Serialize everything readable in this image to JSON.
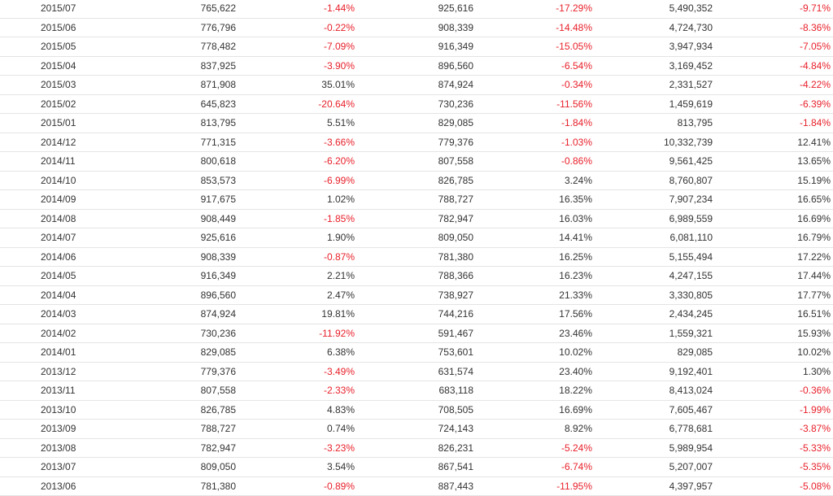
{
  "colors": {
    "text": "#333333",
    "negative": "#e8202a",
    "divider": "#e4e4e4"
  },
  "rows": [
    {
      "period": "2015/07",
      "v1": "765,622",
      "p1": "-1.44%",
      "v2": "925,616",
      "p2": "-17.29%",
      "v3": "5,490,352",
      "p3": "-9.71%"
    },
    {
      "period": "2015/06",
      "v1": "776,796",
      "p1": "-0.22%",
      "v2": "908,339",
      "p2": "-14.48%",
      "v3": "4,724,730",
      "p3": "-8.36%"
    },
    {
      "period": "2015/05",
      "v1": "778,482",
      "p1": "-7.09%",
      "v2": "916,349",
      "p2": "-15.05%",
      "v3": "3,947,934",
      "p3": "-7.05%"
    },
    {
      "period": "2015/04",
      "v1": "837,925",
      "p1": "-3.90%",
      "v2": "896,560",
      "p2": "-6.54%",
      "v3": "3,169,452",
      "p3": "-4.84%"
    },
    {
      "period": "2015/03",
      "v1": "871,908",
      "p1": "35.01%",
      "v2": "874,924",
      "p2": "-0.34%",
      "v3": "2,331,527",
      "p3": "-4.22%"
    },
    {
      "period": "2015/02",
      "v1": "645,823",
      "p1": "-20.64%",
      "v2": "730,236",
      "p2": "-11.56%",
      "v3": "1,459,619",
      "p3": "-6.39%"
    },
    {
      "period": "2015/01",
      "v1": "813,795",
      "p1": "5.51%",
      "v2": "829,085",
      "p2": "-1.84%",
      "v3": "813,795",
      "p3": "-1.84%"
    },
    {
      "period": "2014/12",
      "v1": "771,315",
      "p1": "-3.66%",
      "v2": "779,376",
      "p2": "-1.03%",
      "v3": "10,332,739",
      "p3": "12.41%"
    },
    {
      "period": "2014/11",
      "v1": "800,618",
      "p1": "-6.20%",
      "v2": "807,558",
      "p2": "-0.86%",
      "v3": "9,561,425",
      "p3": "13.65%"
    },
    {
      "period": "2014/10",
      "v1": "853,573",
      "p1": "-6.99%",
      "v2": "826,785",
      "p2": "3.24%",
      "v3": "8,760,807",
      "p3": "15.19%"
    },
    {
      "period": "2014/09",
      "v1": "917,675",
      "p1": "1.02%",
      "v2": "788,727",
      "p2": "16.35%",
      "v3": "7,907,234",
      "p3": "16.65%"
    },
    {
      "period": "2014/08",
      "v1": "908,449",
      "p1": "-1.85%",
      "v2": "782,947",
      "p2": "16.03%",
      "v3": "6,989,559",
      "p3": "16.69%"
    },
    {
      "period": "2014/07",
      "v1": "925,616",
      "p1": "1.90%",
      "v2": "809,050",
      "p2": "14.41%",
      "v3": "6,081,110",
      "p3": "16.79%"
    },
    {
      "period": "2014/06",
      "v1": "908,339",
      "p1": "-0.87%",
      "v2": "781,380",
      "p2": "16.25%",
      "v3": "5,155,494",
      "p3": "17.22%"
    },
    {
      "period": "2014/05",
      "v1": "916,349",
      "p1": "2.21%",
      "v2": "788,366",
      "p2": "16.23%",
      "v3": "4,247,155",
      "p3": "17.44%"
    },
    {
      "period": "2014/04",
      "v1": "896,560",
      "p1": "2.47%",
      "v2": "738,927",
      "p2": "21.33%",
      "v3": "3,330,805",
      "p3": "17.77%"
    },
    {
      "period": "2014/03",
      "v1": "874,924",
      "p1": "19.81%",
      "v2": "744,216",
      "p2": "17.56%",
      "v3": "2,434,245",
      "p3": "16.51%"
    },
    {
      "period": "2014/02",
      "v1": "730,236",
      "p1": "-11.92%",
      "v2": "591,467",
      "p2": "23.46%",
      "v3": "1,559,321",
      "p3": "15.93%"
    },
    {
      "period": "2014/01",
      "v1": "829,085",
      "p1": "6.38%",
      "v2": "753,601",
      "p2": "10.02%",
      "v3": "829,085",
      "p3": "10.02%"
    },
    {
      "period": "2013/12",
      "v1": "779,376",
      "p1": "-3.49%",
      "v2": "631,574",
      "p2": "23.40%",
      "v3": "9,192,401",
      "p3": "1.30%"
    },
    {
      "period": "2013/11",
      "v1": "807,558",
      "p1": "-2.33%",
      "v2": "683,118",
      "p2": "18.22%",
      "v3": "8,413,024",
      "p3": "-0.36%"
    },
    {
      "period": "2013/10",
      "v1": "826,785",
      "p1": "4.83%",
      "v2": "708,505",
      "p2": "16.69%",
      "v3": "7,605,467",
      "p3": "-1.99%"
    },
    {
      "period": "2013/09",
      "v1": "788,727",
      "p1": "0.74%",
      "v2": "724,143",
      "p2": "8.92%",
      "v3": "6,778,681",
      "p3": "-3.87%"
    },
    {
      "period": "2013/08",
      "v1": "782,947",
      "p1": "-3.23%",
      "v2": "826,231",
      "p2": "-5.24%",
      "v3": "5,989,954",
      "p3": "-5.33%"
    },
    {
      "period": "2013/07",
      "v1": "809,050",
      "p1": "3.54%",
      "v2": "867,541",
      "p2": "-6.74%",
      "v3": "5,207,007",
      "p3": "-5.35%"
    },
    {
      "period": "2013/06",
      "v1": "781,380",
      "p1": "-0.89%",
      "v2": "887,443",
      "p2": "-11.95%",
      "v3": "4,397,957",
      "p3": "-5.08%"
    }
  ]
}
